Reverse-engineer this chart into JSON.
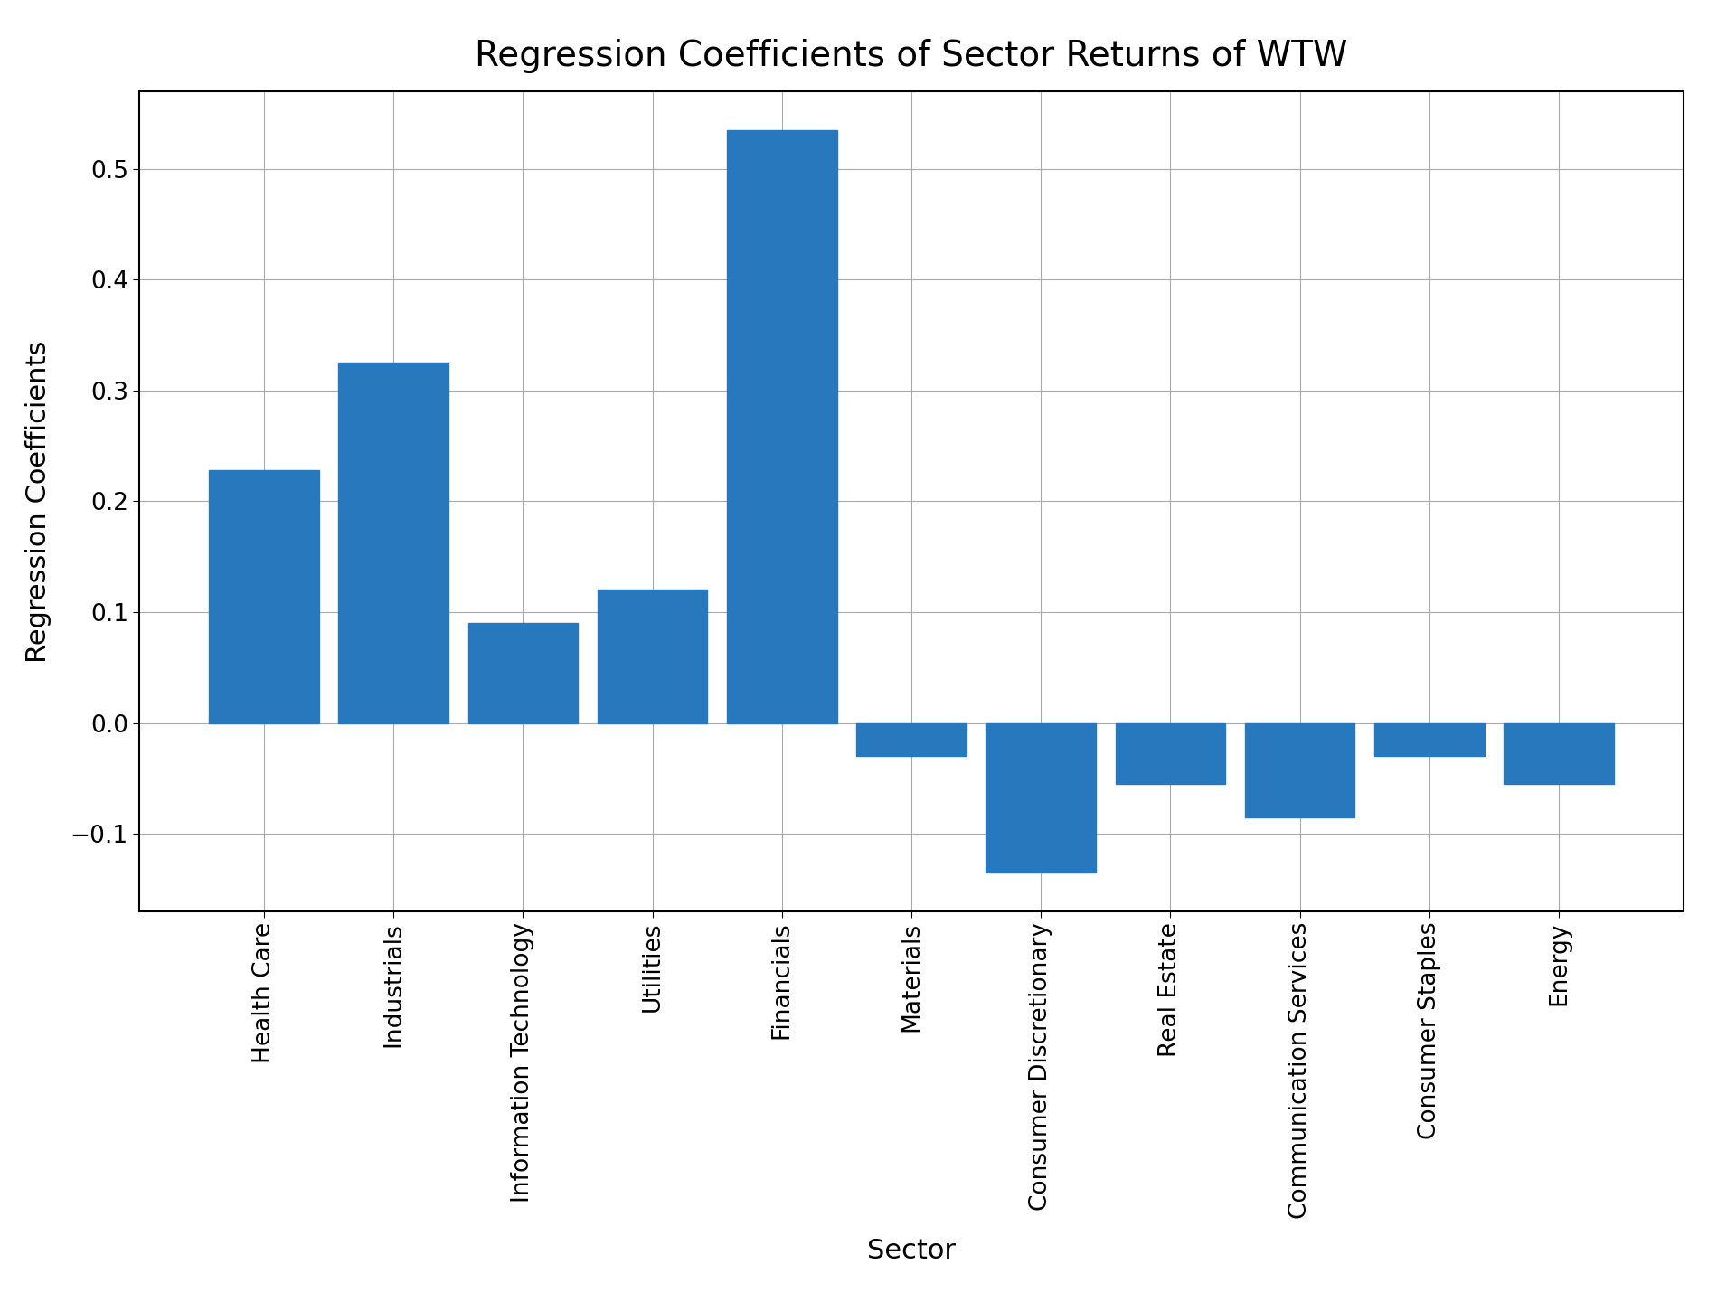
{
  "categories": [
    "Health Care",
    "Industrials",
    "Information Technology",
    "Utilities",
    "Financials",
    "Materials",
    "Consumer Discretionary",
    "Real Estate",
    "Communication Services",
    "Consumer Staples",
    "Energy"
  ],
  "values": [
    0.228,
    0.325,
    0.09,
    0.12,
    0.535,
    -0.03,
    -0.135,
    -0.055,
    -0.085,
    -0.03,
    -0.055
  ],
  "bar_color": "#2878BD",
  "title": "Regression Coefficients of Sector Returns of WTW",
  "xlabel": "Sector",
  "ylabel": "Regression Coefficients",
  "ylim": [
    -0.17,
    0.57
  ],
  "yticks": [
    -0.1,
    0.0,
    0.1,
    0.2,
    0.3,
    0.4,
    0.5
  ],
  "title_fontsize": 28,
  "label_fontsize": 22,
  "tick_fontsize": 19,
  "background_color": "#ffffff",
  "grid_color": "#aaaaaa",
  "bar_width": 0.85
}
